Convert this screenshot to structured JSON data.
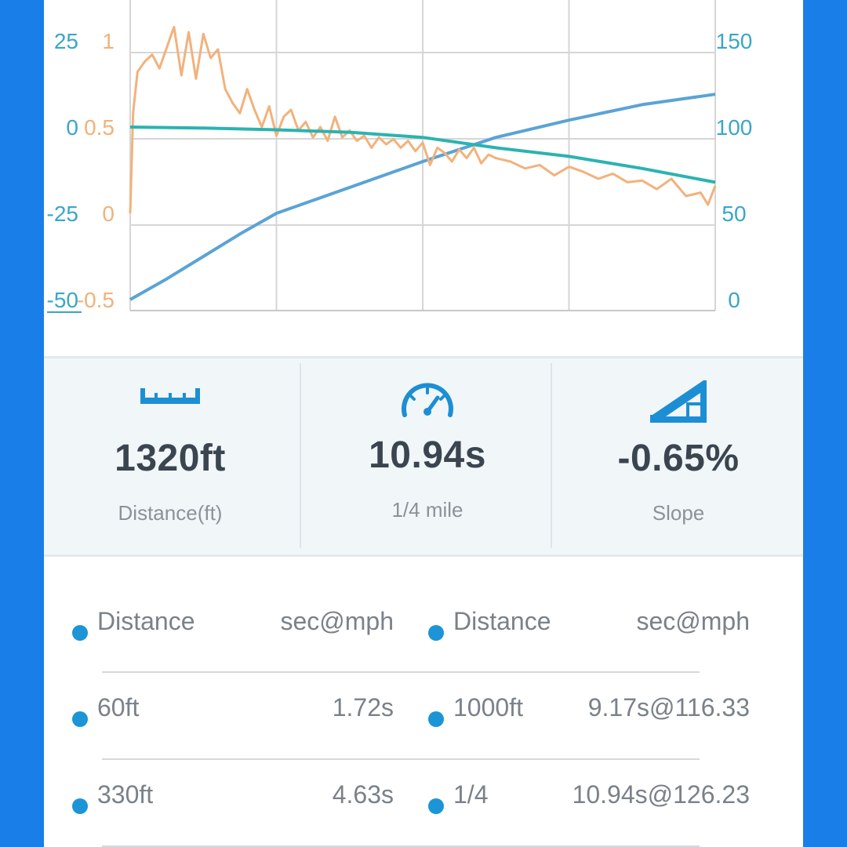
{
  "chart_data": {
    "type": "line",
    "x": [
      0,
      1,
      2,
      3,
      4
    ],
    "xlim": [
      0,
      4
    ],
    "grid": true,
    "axes": {
      "left_outer": {
        "ticks": [
          "25",
          "0",
          "-25",
          "-50"
        ],
        "color": "#3aa6c9"
      },
      "left_inner": {
        "ticks": [
          "1",
          "0.5",
          "0",
          "-0.5"
        ],
        "color": "#f0b27a"
      },
      "right": {
        "ticks": [
          "150",
          "100",
          "50",
          "0"
        ],
        "color": "#3aa6c9"
      }
    },
    "series": [
      {
        "axis": "right",
        "color": "#5aa3d6",
        "ylim": [
          0,
          150
        ],
        "x": [
          0,
          0.25,
          0.5,
          0.75,
          1,
          1.5,
          2,
          2.5,
          3,
          3.5,
          4
        ],
        "values": [
          0,
          12,
          25,
          38,
          50,
          65,
          80,
          94,
          104,
          113,
          119
        ]
      },
      {
        "axis": "left_inner",
        "color": "#f2b27c",
        "ylim": [
          -0.5,
          1
        ],
        "x": [
          0,
          0.02,
          0.05,
          0.1,
          0.15,
          0.2,
          0.25,
          0.3,
          0.35,
          0.4,
          0.45,
          0.5,
          0.55,
          0.6,
          0.65,
          0.7,
          0.75,
          0.8,
          0.85,
          0.9,
          0.95,
          1,
          1.05,
          1.1,
          1.15,
          1.2,
          1.25,
          1.3,
          1.35,
          1.4,
          1.45,
          1.5,
          1.55,
          1.6,
          1.65,
          1.7,
          1.75,
          1.8,
          1.85,
          1.9,
          1.95,
          2,
          2.05,
          2.1,
          2.15,
          2.2,
          2.25,
          2.3,
          2.35,
          2.4,
          2.45,
          2.5,
          2.6,
          2.7,
          2.8,
          2.9,
          3,
          3.1,
          3.2,
          3.3,
          3.4,
          3.5,
          3.6,
          3.7,
          3.8,
          3.9,
          3.95,
          4
        ],
        "values": [
          0,
          0.58,
          0.82,
          0.88,
          0.92,
          0.84,
          0.96,
          1.08,
          0.8,
          1.05,
          0.78,
          1.04,
          0.9,
          0.95,
          0.72,
          0.64,
          0.58,
          0.72,
          0.6,
          0.5,
          0.62,
          0.45,
          0.56,
          0.6,
          0.48,
          0.53,
          0.44,
          0.5,
          0.42,
          0.56,
          0.44,
          0.48,
          0.42,
          0.45,
          0.38,
          0.44,
          0.4,
          0.43,
          0.38,
          0.42,
          0.36,
          0.41,
          0.28,
          0.38,
          0.35,
          0.3,
          0.37,
          0.32,
          0.38,
          0.29,
          0.34,
          0.32,
          0.3,
          0.26,
          0.28,
          0.22,
          0.27,
          0.24,
          0.2,
          0.23,
          0.18,
          0.19,
          0.14,
          0.2,
          0.1,
          0.12,
          0.05,
          0.16
        ]
      },
      {
        "axis": "left_outer",
        "color": "#2bb3b1",
        "ylim": [
          -50,
          25
        ],
        "x": [
          0,
          0.5,
          1,
          1.5,
          2,
          2.5,
          3,
          3.5,
          4
        ],
        "values": [
          0,
          -0.3,
          -0.8,
          -1.5,
          -3,
          -6,
          -8.5,
          -12,
          -16
        ]
      }
    ]
  },
  "stats": [
    {
      "icon": "ruler-icon",
      "value": "1320ft",
      "label": "Distance(ft)"
    },
    {
      "icon": "speedometer-icon",
      "value": "10.94s",
      "label": "1/4 mile"
    },
    {
      "icon": "slope-icon",
      "value": "-0.65%",
      "label": "Slope"
    }
  ],
  "table": {
    "header": {
      "left_name": "Distance",
      "left_value": "sec@mph",
      "right_name": "Distance",
      "right_value": "sec@mph"
    },
    "rows": [
      {
        "left_name": "60ft",
        "left_value": "1.72s",
        "right_name": "1000ft",
        "right_value": "9.17s@116.33"
      },
      {
        "left_name": "330ft",
        "left_value": "4.63s",
        "right_name": "1/4",
        "right_value": "10.94s@126.23"
      }
    ]
  },
  "colors": {
    "frame": "#1a7ee8",
    "accent": "#1c95d6",
    "text_dark": "#3b4550",
    "text_muted": "#8b9298"
  }
}
